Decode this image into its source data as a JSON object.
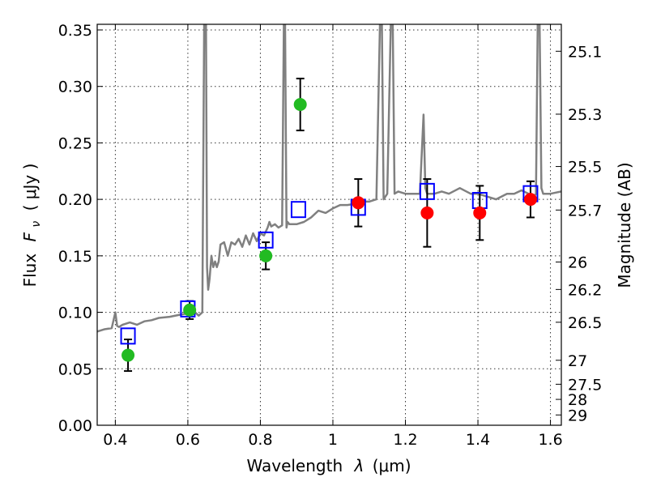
{
  "chart_data": {
    "type": "scatter",
    "xlabel_text": "Wavelength",
    "xlabel_symbol": "λ",
    "xlabel_unit": "(μm)",
    "ylabel_text": "Flux",
    "ylabel_symbol": "F",
    "ylabel_subscript": "ν",
    "ylabel_unit": "( μJy )",
    "y2label": "Magnitude (AB)",
    "xlim": [
      0.35,
      1.63
    ],
    "ylim": [
      0.0,
      0.355
    ],
    "x_ticks": [
      0.4,
      0.6,
      0.8,
      1.0,
      1.2,
      1.4,
      1.6
    ],
    "x_tick_labels": [
      "0.4",
      "0.6",
      "0.8",
      "1",
      "1.2",
      "1.4",
      "1.6"
    ],
    "y_ticks": [
      0.0,
      0.05,
      0.1,
      0.15,
      0.2,
      0.25,
      0.3,
      0.35
    ],
    "y_tick_labels": [
      "0.00",
      "0.05",
      "0.10",
      "0.15",
      "0.20",
      "0.25",
      "0.30",
      "0.35"
    ],
    "y2_ticks": [
      25.1,
      25.3,
      25.5,
      25.7,
      26.0,
      26.2,
      26.5,
      27.0,
      27.5,
      28.0,
      29.0
    ],
    "y2_tick_labels": [
      "25.1",
      "25.3",
      "25.5",
      "25.7",
      "26",
      "26.2",
      "26.5",
      "27",
      "27.5",
      "28",
      "29"
    ],
    "grid": true,
    "colors": {
      "model": "#808080",
      "model_photometry": "#0000ff",
      "optical_points": "#22bb22",
      "nir_points": "#ff0000",
      "errorbar": "#000000"
    },
    "series": [
      {
        "kind": "line",
        "x": [
          0.35,
          0.37,
          0.39,
          0.4,
          0.405,
          0.41,
          0.42,
          0.44,
          0.46,
          0.48,
          0.5,
          0.52,
          0.55,
          0.58,
          0.6,
          0.62,
          0.63,
          0.64,
          0.645,
          0.65,
          0.653,
          0.656,
          0.66,
          0.665,
          0.67,
          0.675,
          0.68,
          0.685,
          0.69,
          0.7,
          0.71,
          0.72,
          0.73,
          0.74,
          0.75,
          0.76,
          0.77,
          0.78,
          0.79,
          0.8,
          0.81,
          0.82,
          0.825,
          0.83,
          0.84,
          0.85,
          0.86,
          0.865,
          0.868,
          0.872,
          0.875,
          0.88,
          0.9,
          0.92,
          0.94,
          0.96,
          0.98,
          1.0,
          1.02,
          1.04,
          1.06,
          1.08,
          1.09,
          1.1,
          1.12,
          1.13,
          1.135,
          1.14,
          1.15,
          1.16,
          1.165,
          1.17,
          1.18,
          1.2,
          1.22,
          1.24,
          1.25,
          1.255,
          1.26,
          1.28,
          1.3,
          1.32,
          1.35,
          1.38,
          1.4,
          1.42,
          1.45,
          1.48,
          1.5,
          1.52,
          1.54,
          1.55,
          1.56,
          1.565,
          1.57,
          1.575,
          1.58,
          1.6,
          1.63
        ],
        "y": [
          0.083,
          0.085,
          0.086,
          0.1,
          0.088,
          0.087,
          0.089,
          0.091,
          0.089,
          0.092,
          0.093,
          0.095,
          0.096,
          0.098,
          0.099,
          0.1,
          0.097,
          0.1,
          0.36,
          0.36,
          0.14,
          0.12,
          0.13,
          0.15,
          0.14,
          0.145,
          0.14,
          0.145,
          0.16,
          0.162,
          0.15,
          0.162,
          0.16,
          0.165,
          0.158,
          0.168,
          0.16,
          0.17,
          0.163,
          0.17,
          0.168,
          0.175,
          0.18,
          0.176,
          0.178,
          0.175,
          0.177,
          0.36,
          0.36,
          0.175,
          0.18,
          0.178,
          0.178,
          0.18,
          0.184,
          0.19,
          0.188,
          0.192,
          0.195,
          0.195,
          0.196,
          0.2,
          0.198,
          0.198,
          0.2,
          0.36,
          0.36,
          0.2,
          0.205,
          0.36,
          0.36,
          0.205,
          0.207,
          0.205,
          0.205,
          0.205,
          0.275,
          0.21,
          0.205,
          0.205,
          0.207,
          0.205,
          0.21,
          0.205,
          0.205,
          0.203,
          0.2,
          0.205,
          0.205,
          0.208,
          0.205,
          0.2,
          0.205,
          0.36,
          0.36,
          0.21,
          0.205,
          0.205,
          0.207
        ]
      },
      {
        "kind": "scatter",
        "marker": "square",
        "points": [
          [
            0.435,
            0.079
          ],
          [
            0.6,
            0.103
          ],
          [
            0.815,
            0.164
          ],
          [
            0.905,
            0.191
          ],
          [
            1.07,
            0.193
          ],
          [
            1.26,
            0.207
          ],
          [
            1.405,
            0.199
          ],
          [
            1.545,
            0.205
          ]
        ]
      },
      {
        "kind": "scatter",
        "marker": "circle",
        "points": [
          [
            0.435,
            0.062,
            0.014
          ],
          [
            0.605,
            0.102,
            0.008
          ],
          [
            0.815,
            0.15,
            0.012
          ],
          [
            0.91,
            0.284,
            0.023
          ]
        ]
      },
      {
        "kind": "scatter",
        "marker": "circle",
        "points": [
          [
            1.07,
            0.197,
            0.021
          ],
          [
            1.26,
            0.188,
            0.03
          ],
          [
            1.405,
            0.188,
            0.024
          ],
          [
            1.545,
            0.2,
            0.016
          ]
        ]
      }
    ]
  }
}
